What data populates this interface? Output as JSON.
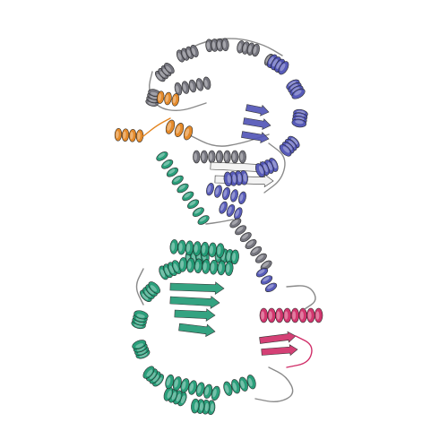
{
  "image": {
    "background": "#ffffff",
    "subject": "protein-ribbon-structure",
    "style": "cartoon-ribbon"
  },
  "colors": {
    "upper_lobe_gray": "#6e6e78",
    "upper_lobe_blue": "#4f53b6",
    "orange_domain": "#e3841f",
    "green_chain": "#1f9a74",
    "pink_domain": "#d02c67",
    "loop_gray": "#8a8a8a",
    "sheet_light": "#f2f2f2"
  }
}
